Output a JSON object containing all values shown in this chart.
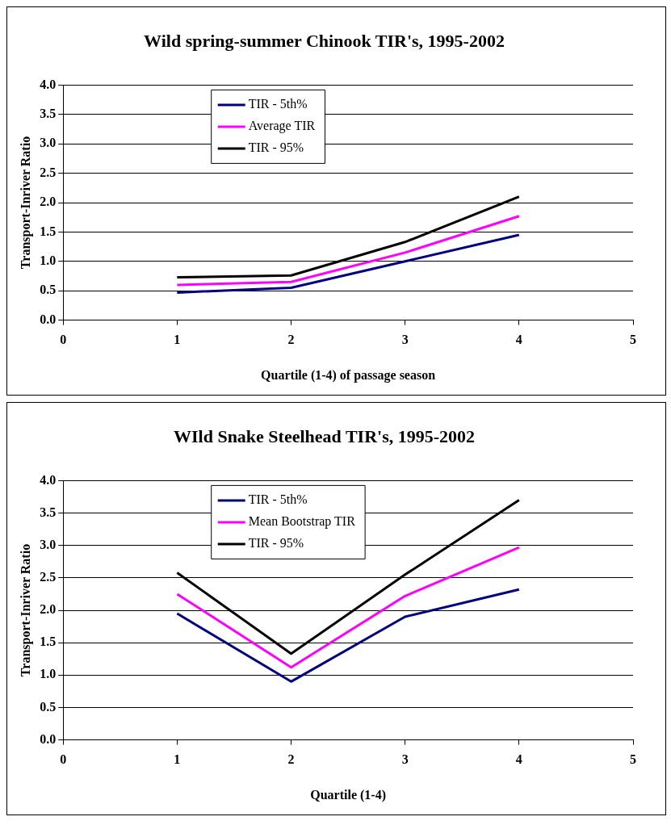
{
  "chart_data": [
    {
      "type": "line",
      "title": "Wild spring-summer Chinook TIR's, 1995-2002",
      "xlabel": "Quartile (1-4) of passage season",
      "ylabel": "Transport-Inriver Ratio",
      "x": [
        1,
        2,
        3,
        4
      ],
      "xlim": [
        0,
        5
      ],
      "xticks": [
        0,
        1,
        2,
        3,
        4,
        5
      ],
      "ylim": [
        0,
        4
      ],
      "yticks": [
        {
          "value": 0,
          "label": "0.0"
        },
        {
          "value": 0.5,
          "label": "0.5"
        },
        {
          "value": 1,
          "label": "1.0"
        },
        {
          "value": 1.5,
          "label": "1.5"
        },
        {
          "value": 2,
          "label": "2.0"
        },
        {
          "value": 2.5,
          "label": "2.5"
        },
        {
          "value": 3,
          "label": "3.0"
        },
        {
          "value": 3.5,
          "label": "3.5"
        },
        {
          "value": 4,
          "label": "4.0"
        }
      ],
      "grid": "y",
      "legend": "top left",
      "marker": "none",
      "line_style": "solid",
      "series": [
        {
          "name": "TIR - 5th%",
          "color": "#000080",
          "values": [
            0.47,
            0.55,
            1.0,
            1.45
          ]
        },
        {
          "name": "Average TIR",
          "color": "#ff00ff",
          "values": [
            0.6,
            0.65,
            1.15,
            1.77
          ]
        },
        {
          "name": "TIR - 95%",
          "color": "#000000",
          "values": [
            0.73,
            0.76,
            1.33,
            2.1
          ]
        }
      ]
    },
    {
      "type": "line",
      "title": "WIld Snake Steelhead TIR's, 1995-2002",
      "xlabel": "Quartile (1-4)",
      "ylabel": "Transport-Inriver Ratio",
      "x": [
        1,
        2,
        3,
        4
      ],
      "xlim": [
        0,
        5
      ],
      "xticks": [
        0,
        1,
        2,
        3,
        4,
        5
      ],
      "ylim": [
        0,
        4
      ],
      "yticks": [
        {
          "value": 0,
          "label": "0.0"
        },
        {
          "value": 0.5,
          "label": "0.5"
        },
        {
          "value": 1,
          "label": "1.0"
        },
        {
          "value": 1.5,
          "label": "1.5"
        },
        {
          "value": 2,
          "label": "2.0"
        },
        {
          "value": 2.5,
          "label": "2.5"
        },
        {
          "value": 3,
          "label": "3.0"
        },
        {
          "value": 3.5,
          "label": "3.5"
        },
        {
          "value": 4,
          "label": "4.0"
        }
      ],
      "grid": "y",
      "legend": "top left",
      "marker": "none",
      "line_style": "solid",
      "series": [
        {
          "name": "TIR - 5th%",
          "color": "#000080",
          "values": [
            1.95,
            0.9,
            1.9,
            2.32
          ]
        },
        {
          "name": "Mean Bootstrap TIR",
          "color": "#ff00ff",
          "values": [
            2.25,
            1.12,
            2.22,
            2.97
          ]
        },
        {
          "name": "TIR - 95%",
          "color": "#000000",
          "values": [
            2.58,
            1.33,
            2.55,
            3.7
          ]
        }
      ]
    }
  ]
}
